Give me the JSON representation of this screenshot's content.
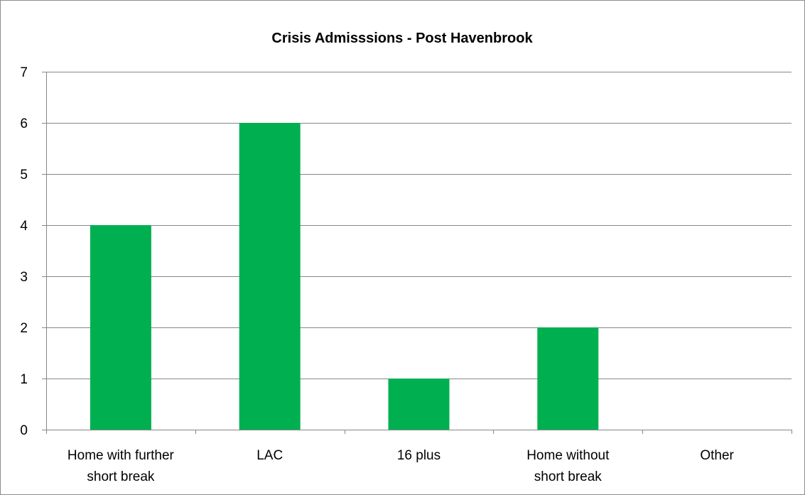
{
  "chart_data": {
    "type": "bar",
    "title": "Crisis Admisssions - Post Havenbrook",
    "xlabel": "",
    "ylabel": "",
    "categories": [
      [
        "Home with further",
        "short break"
      ],
      [
        "LAC"
      ],
      [
        "16 plus"
      ],
      [
        "Home without",
        "short break"
      ],
      [
        "Other"
      ]
    ],
    "values": [
      4,
      6,
      1,
      2,
      0
    ],
    "ylim": [
      0,
      7
    ],
    "yticks": [
      "0",
      "1",
      "2",
      "3",
      "4",
      "5",
      "6",
      "7"
    ],
    "grid": true,
    "legend": "none",
    "bar_color": "#00b050",
    "grid_color": "#878787"
  }
}
